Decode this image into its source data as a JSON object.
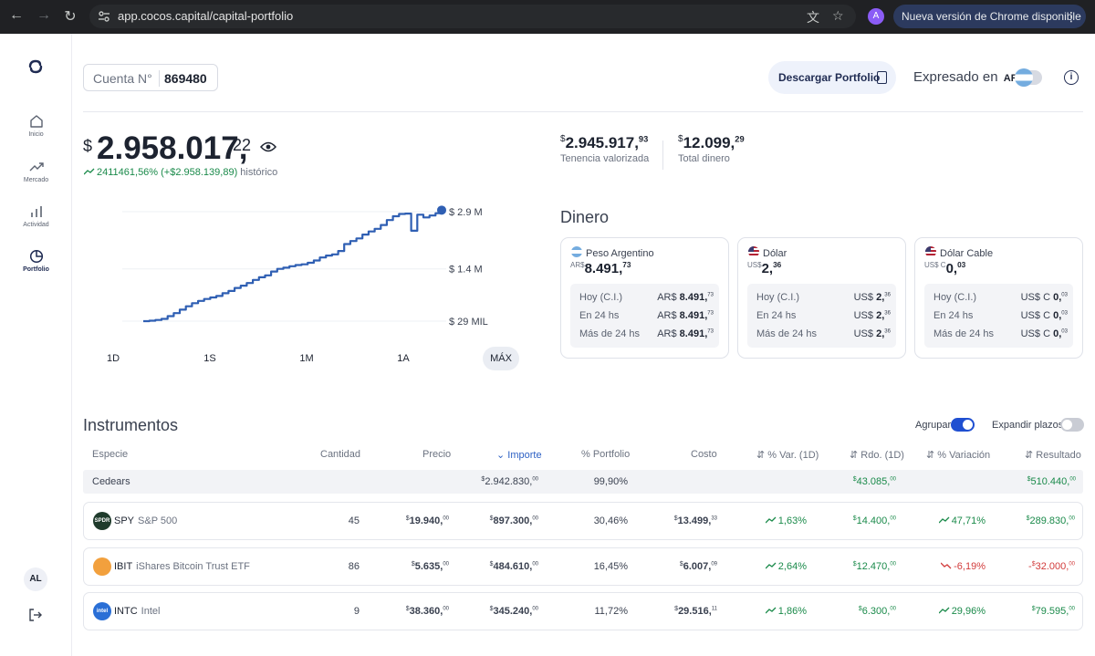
{
  "browser": {
    "url": "app.cocos.capital/capital-portfolio",
    "profile_initial": "A",
    "update_label": "Nueva versión de Chrome disponible"
  },
  "sidebar": {
    "items": [
      {
        "label": "Inicio",
        "icon": "home-icon"
      },
      {
        "label": "Mercado",
        "icon": "trend-icon"
      },
      {
        "label": "Actividad",
        "icon": "bar-chart-icon"
      },
      {
        "label": "Portfolio",
        "icon": "pie-chart-icon"
      }
    ],
    "avatar": "AL"
  },
  "header": {
    "cuenta_label": "Cuenta N°",
    "cuenta_value": "869480",
    "download_label": "Descargar Portfolio",
    "expresado_label": "Expresado en",
    "expresado_currency": "ARS"
  },
  "balance": {
    "currency": "$",
    "integer": "2.958.017,",
    "decimals": "22",
    "change": "2411461,56% (+$2.958.139,89)",
    "change_suffix": "histórico"
  },
  "chart_data": {
    "type": "line",
    "title": "",
    "xlabel": "",
    "ylabel": "",
    "y_tick_labels": [
      "$ 2.9 M",
      "$ 1.4 M",
      "$ 29 MIL"
    ],
    "y_ticks": [
      2900000,
      1400000,
      29000
    ],
    "ylim": [
      29000,
      2900000
    ],
    "series": [
      {
        "values": [
          29000,
          40000,
          60000,
          90000,
          160000,
          240000,
          330000,
          420000,
          500000,
          560000,
          610000,
          650000,
          690000,
          760000,
          820000,
          900000,
          960000,
          1030000,
          1110000,
          1180000,
          1230000,
          1330000,
          1400000,
          1430000,
          1470000,
          1500000,
          1520000,
          1560000,
          1620000,
          1700000,
          1750000,
          1780000,
          1870000,
          2050000,
          2130000,
          2200000,
          2300000,
          2380000,
          2450000,
          2550000,
          2680000,
          2780000,
          2840000,
          2850000,
          2400000,
          2820000,
          2750000,
          2800000,
          2860000,
          2940000
        ]
      }
    ],
    "color": "#2f5fb3",
    "grid": true
  },
  "ranges": [
    "1D",
    "1S",
    "1M",
    "1A",
    "MÁX"
  ],
  "active_range": "MÁX",
  "summary": {
    "tenencia": {
      "currency": "$",
      "int": "2.945.917,",
      "dec": "93",
      "label": "Tenencia valorizada"
    },
    "total": {
      "currency": "$",
      "int": "12.099,",
      "dec": "29",
      "label": "Total dinero"
    }
  },
  "dinero": {
    "title": "Dinero",
    "cards": [
      {
        "name": "Peso Argentino",
        "currency": "AR$",
        "int": "8.491,",
        "dec": "73",
        "rows": [
          {
            "label": "Hoy (C.I.)",
            "cur": "AR$",
            "int": "8.491,",
            "dec": "73"
          },
          {
            "label": "En 24 hs",
            "cur": "AR$",
            "int": "8.491,",
            "dec": "73"
          },
          {
            "label": "Más de 24 hs",
            "cur": "AR$",
            "int": "8.491,",
            "dec": "73"
          }
        ]
      },
      {
        "name": "Dólar",
        "currency": "US$",
        "int": "2,",
        "dec": "36",
        "rows": [
          {
            "label": "Hoy (C.I.)",
            "cur": "US$",
            "int": "2,",
            "dec": "36"
          },
          {
            "label": "En 24 hs",
            "cur": "US$",
            "int": "2,",
            "dec": "36"
          },
          {
            "label": "Más de 24 hs",
            "cur": "US$",
            "int": "2,",
            "dec": "36"
          }
        ]
      },
      {
        "name": "Dólar Cable",
        "currency": "US$ C",
        "int": "0,",
        "dec": "03",
        "rows": [
          {
            "label": "Hoy (C.I.)",
            "cur": "US$ C",
            "int": "0,",
            "dec": "03"
          },
          {
            "label": "En 24 hs",
            "cur": "US$ C",
            "int": "0,",
            "dec": "03"
          },
          {
            "label": "Más de 24 hs",
            "cur": "US$ C",
            "int": "0,",
            "dec": "03"
          }
        ]
      }
    ]
  },
  "instrumentos": {
    "title": "Instrumentos",
    "agrupar_label": "Agrupar",
    "expandir_label": "Expandir plazos",
    "columns": [
      "Especie",
      "Cantidad",
      "Precio",
      "Importe",
      "% Portfolio",
      "Costo",
      "% Var. (1D)",
      "Rdo. (1D)",
      "% Variación",
      "Resultado"
    ],
    "group": {
      "name": "Cedears",
      "importe_int": "2.942.830,",
      "importe_dec": "00",
      "portfolio": "99,90%",
      "rdo_int": "43.085,",
      "rdo_dec": "00",
      "resultado_int": "510.440,",
      "resultado_dec": "00"
    },
    "rows": [
      {
        "ticker": "SPY",
        "name": "S&P 500",
        "logo_text": "SPDR",
        "logo_color": "#1f3b2c",
        "cantidad": "45",
        "precio_int": "19.940,",
        "precio_dec": "00",
        "importe_int": "897.300,",
        "importe_dec": "00",
        "portfolio": "30,46%",
        "costo_int": "13.499,",
        "costo_dec": "33",
        "var1d": "1,63%",
        "var1d_dir": "up",
        "rdo_int": "14.400,",
        "rdo_dec": "00",
        "variacion": "47,71%",
        "variacion_dir": "up",
        "resultado_int": "289.830,",
        "resultado_dec": "00",
        "resultado_sign": ""
      },
      {
        "ticker": "IBIT",
        "name": "iShares Bitcoin Trust ETF",
        "logo_text": "",
        "logo_color": "#f2a03d",
        "cantidad": "86",
        "precio_int": "5.635,",
        "precio_dec": "00",
        "importe_int": "484.610,",
        "importe_dec": "00",
        "portfolio": "16,45%",
        "costo_int": "6.007,",
        "costo_dec": "09",
        "var1d": "2,64%",
        "var1d_dir": "up",
        "rdo_int": "12.470,",
        "rdo_dec": "00",
        "variacion": "-6,19%",
        "variacion_dir": "down",
        "resultado_int": "32.000,",
        "resultado_dec": "00",
        "resultado_sign": "-"
      },
      {
        "ticker": "INTC",
        "name": "Intel",
        "logo_text": "intel",
        "logo_color": "#2a6fd6",
        "cantidad": "9",
        "precio_int": "38.360,",
        "precio_dec": "00",
        "importe_int": "345.240,",
        "importe_dec": "00",
        "portfolio": "11,72%",
        "costo_int": "29.516,",
        "costo_dec": "11",
        "var1d": "1,86%",
        "var1d_dir": "up",
        "rdo_int": "6.300,",
        "rdo_dec": "00",
        "variacion": "29,96%",
        "variacion_dir": "up",
        "resultado_int": "79.595,",
        "resultado_dec": "00",
        "resultado_sign": ""
      }
    ]
  }
}
